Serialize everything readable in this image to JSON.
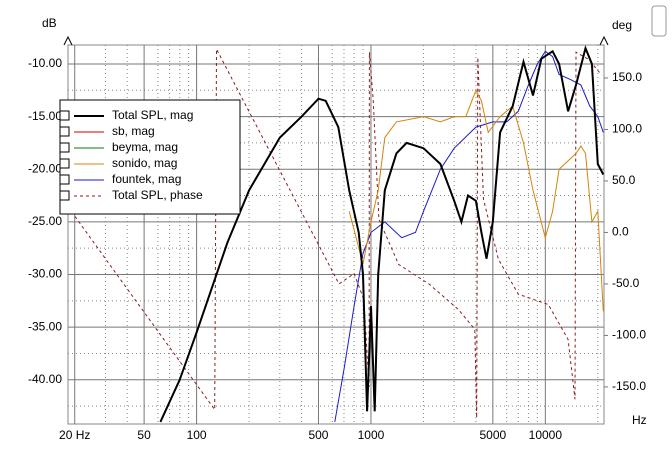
{
  "chart_data": {
    "type": "line",
    "xscale": "log",
    "grid": true,
    "legend": "upper-left",
    "ylabel": "dB",
    "y2label": "deg",
    "xlabel": "Hz",
    "xlim": [
      18.3,
      21700
    ],
    "ylim": [
      -44.2,
      -8.2
    ],
    "y2lim": [
      -186,
      182
    ],
    "xticks": [
      {
        "value": 20,
        "label": "20 Hz"
      },
      50,
      100,
      500,
      1000,
      5000,
      10000
    ],
    "xminor": [
      30,
      40,
      60,
      70,
      80,
      90,
      200,
      300,
      400,
      600,
      700,
      800,
      900,
      2000,
      3000,
      4000,
      6000,
      7000,
      8000,
      9000,
      20000
    ],
    "yticks": [
      {
        "value": -10,
        "label": "-10.00"
      },
      {
        "value": -15,
        "label": "-15.00"
      },
      {
        "value": -20,
        "label": "-20.00"
      },
      {
        "value": -25,
        "label": "-25.00"
      },
      {
        "value": -30,
        "label": "-30.00"
      },
      {
        "value": -35,
        "label": "-35.00"
      },
      {
        "value": -40,
        "label": "-40.00"
      }
    ],
    "yminor": [
      -12.5,
      -17.5,
      -22.5,
      -27.5,
      -32.5,
      -37.5,
      -42.5
    ],
    "y2ticks": [
      {
        "value": 150,
        "label": "150.0"
      },
      {
        "value": 100,
        "label": "100.0"
      },
      {
        "value": 50,
        "label": "50.0"
      },
      {
        "value": 0,
        "label": "0.0"
      },
      {
        "value": -50,
        "label": "-50.0"
      },
      {
        "value": -100,
        "label": "-100.0"
      },
      {
        "value": -150,
        "label": "-150.0"
      }
    ],
    "series": [
      {
        "name": "Total SPL, mag",
        "color": "#000000",
        "x": [
          62,
          80,
          100,
          150,
          200,
          300,
          400,
          500,
          550,
          650,
          750,
          850,
          900,
          950,
          1000,
          1050,
          1100,
          1200,
          1400,
          1600,
          2000,
          2500,
          3000,
          3300,
          3600,
          4000,
          4300,
          4600,
          5000,
          5500,
          6500,
          7500,
          8500,
          9500,
          11000,
          12000,
          13500,
          15000,
          17000,
          18500,
          20000,
          21500
        ],
        "values": [
          -44,
          -40,
          -35.5,
          -27,
          -22,
          -17,
          -15,
          -13.3,
          -13.5,
          -16,
          -22,
          -26,
          -30,
          -43,
          -33,
          -43,
          -30,
          -22,
          -18.5,
          -17.5,
          -18,
          -19.5,
          -23,
          -25,
          -22.5,
          -23,
          -26,
          -28.5,
          -25,
          -16.5,
          -14,
          -9.8,
          -13,
          -9.5,
          -8.8,
          -10,
          -14.5,
          -12,
          -8.5,
          -10,
          -19.5,
          -20.5
        ]
      },
      {
        "name": "sb, mag",
        "color": "#cc0000",
        "x": [
          62,
          80,
          100,
          150,
          200,
          300,
          400,
          500,
          550,
          650
        ],
        "values": [
          -44,
          -40,
          -35.5,
          -27,
          -22,
          -17,
          -15,
          -13.3,
          -13.5,
          -16
        ]
      },
      {
        "name": "beyma, mag",
        "color": "#008000",
        "x": [
          1400,
          1600,
          2000,
          2500
        ],
        "values": [
          -18.5,
          -17.5,
          -18,
          -19.5
        ]
      },
      {
        "name": "sonido, mag",
        "color": "#d4850a",
        "x": [
          750,
          900,
          1000,
          1100,
          1200,
          1400,
          2000,
          2500,
          3000,
          3500,
          4000,
          4300,
          4700,
          5500,
          6500,
          7500,
          8500,
          10000,
          11000,
          12000,
          15000,
          16000,
          17000,
          18500,
          20000,
          21500
        ],
        "values": [
          -24,
          -29,
          -25,
          -22,
          -17,
          -15.5,
          -15,
          -15.5,
          -15,
          -15,
          -12.5,
          -13.5,
          -16.5,
          -15,
          -14,
          -17.5,
          -22,
          -26.5,
          -24,
          -20,
          -18.5,
          -17.8,
          -18.5,
          -25,
          -24,
          -33.5
        ]
      },
      {
        "name": "fountek, mag",
        "color": "#1a1acc",
        "x": [
          620,
          700,
          800,
          900,
          1000,
          1200,
          1500,
          1800,
          2000,
          2500,
          3000,
          4000,
          5000,
          6000,
          7000,
          8000,
          9000,
          10000,
          11000,
          12000,
          14000,
          16000,
          18000,
          20000,
          21500
        ],
        "values": [
          -44,
          -39,
          -33,
          -28,
          -26,
          -25,
          -26.5,
          -26,
          -24,
          -20,
          -18,
          -16,
          -15.5,
          -15.5,
          -14.5,
          -12,
          -10,
          -8.8,
          -9.3,
          -11,
          -11.5,
          -12,
          -14,
          -15,
          -16.5
        ]
      },
      {
        "name": "Total SPL, phase",
        "color": "#8b1a1a",
        "axis": "y2",
        "linestyle": "dashed",
        "x": [
          18.3,
          36,
          127,
          130,
          298,
          656,
          800,
          910,
          975,
          980,
          1030,
          1110,
          1440,
          2150,
          3180,
          3940,
          4040,
          4100,
          4420,
          5380,
          7000,
          10400,
          13500,
          14800,
          15000,
          17700,
          21000
        ],
        "values": [
          25,
          -44,
          -172,
          178,
          61,
          -50,
          -40,
          -65,
          -150,
          175,
          129,
          13,
          -31,
          -50,
          -75,
          -94,
          -180,
          170,
          32,
          -26,
          -60,
          -70,
          -104,
          -162,
          175,
          168,
          153
        ]
      }
    ]
  }
}
